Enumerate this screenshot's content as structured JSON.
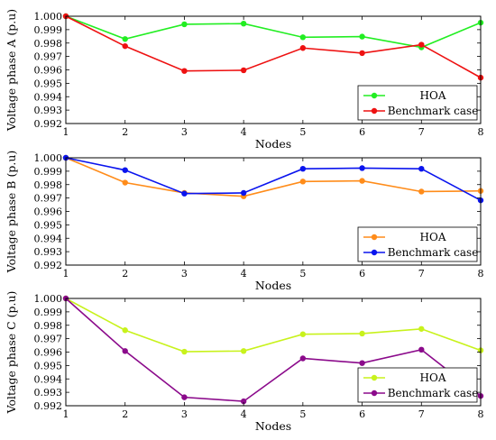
{
  "chart_data": [
    {
      "type": "line",
      "xlabel": "Nodes",
      "ylabel": "Voltage phase A (p.u)",
      "x": [
        1,
        2,
        3,
        4,
        5,
        6,
        7,
        8
      ],
      "xlim": [
        1,
        8
      ],
      "ylim": [
        0.992,
        1.0
      ],
      "yticks": [
        "0.992",
        "0.993",
        "0.994",
        "0.995",
        "0.996",
        "0.997",
        "0.998",
        "0.999",
        "1.000"
      ],
      "grid": false,
      "legend_position": "bottom-right",
      "series": [
        {
          "name": "HOA",
          "color": "#22ee22",
          "values": [
            1.0,
            0.9983,
            0.9994,
            0.99945,
            0.99843,
            0.99848,
            0.99768,
            0.99952
          ]
        },
        {
          "name": "Benchmark case",
          "color": "#ee1111",
          "values": [
            1.0,
            0.99777,
            0.99592,
            0.99597,
            0.99763,
            0.99725,
            0.99788,
            0.99542
          ]
        }
      ]
    },
    {
      "type": "line",
      "xlabel": "Nodes",
      "ylabel": "Voltage phase B (p.u)",
      "x": [
        1,
        2,
        3,
        4,
        5,
        6,
        7,
        8
      ],
      "xlim": [
        1,
        8
      ],
      "ylim": [
        0.992,
        1.0
      ],
      "yticks": [
        "0.992",
        "0.993",
        "0.994",
        "0.995",
        "0.996",
        "0.997",
        "0.998",
        "0.999",
        "1.000"
      ],
      "grid": false,
      "legend_position": "bottom-right",
      "series": [
        {
          "name": "HOA",
          "color": "#ff8c1a",
          "values": [
            1.0,
            0.99815,
            0.99738,
            0.99713,
            0.99823,
            0.99828,
            0.99748,
            0.99753
          ]
        },
        {
          "name": "Benchmark case",
          "color": "#0a14ee",
          "values": [
            1.0,
            0.99908,
            0.99733,
            0.99738,
            0.99918,
            0.99923,
            0.99918,
            0.99683
          ]
        }
      ]
    },
    {
      "type": "line",
      "xlabel": "Nodes",
      "ylabel": "Voltage phase C (p.u)",
      "x": [
        1,
        2,
        3,
        4,
        5,
        6,
        7,
        8
      ],
      "xlim": [
        1,
        8
      ],
      "ylim": [
        0.992,
        1.0
      ],
      "yticks": [
        "0.992",
        "0.993",
        "0.994",
        "0.995",
        "0.996",
        "0.997",
        "0.998",
        "0.999",
        "1.000"
      ],
      "grid": false,
      "legend_position": "bottom-right",
      "series": [
        {
          "name": "HOA",
          "color": "#c8f21c",
          "values": [
            1.0,
            0.99763,
            0.99603,
            0.99608,
            0.99733,
            0.99738,
            0.99773,
            0.99613
          ]
        },
        {
          "name": "Benchmark case",
          "color": "#8b0a8b",
          "values": [
            1.0,
            0.99608,
            0.99263,
            0.99233,
            0.99553,
            0.99518,
            0.99618,
            0.99273
          ]
        }
      ]
    }
  ]
}
